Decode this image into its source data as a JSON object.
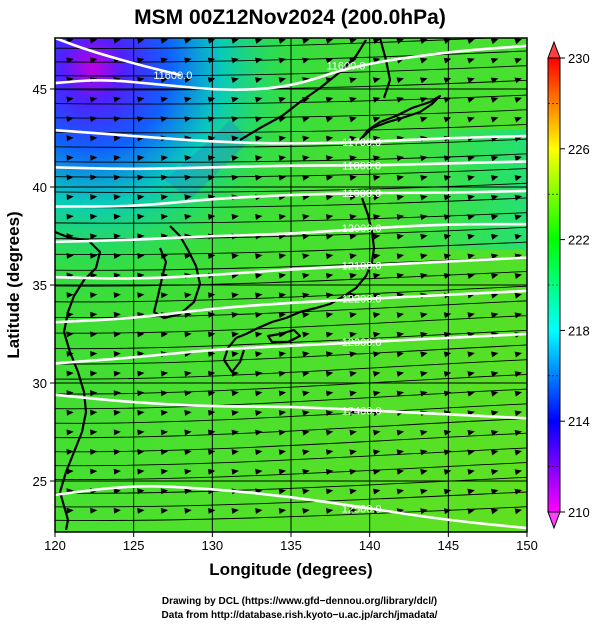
{
  "chart_data": {
    "type": "heatmap",
    "title": "MSM 00Z12Nov2024 (200.0hPa)",
    "xlabel": "Longitude (degrees)",
    "ylabel": "Latitude  (degrees)",
    "xlim": [
      120,
      150
    ],
    "ylim": [
      22.4,
      47.6
    ],
    "x_ticks": [
      "120",
      "125",
      "130",
      "135",
      "140",
      "145",
      "150"
    ],
    "x_tick_values": [
      120,
      125,
      130,
      135,
      140,
      145,
      150
    ],
    "y_ticks": [
      "25",
      "30",
      "35",
      "40",
      "45"
    ],
    "y_tick_values": [
      25,
      30,
      35,
      40,
      45
    ],
    "grid": true,
    "colorbar": {
      "min": 210,
      "max": 230,
      "tick_labels": [
        "230",
        "226",
        "222",
        "218",
        "214",
        "210"
      ],
      "tick_values": [
        230,
        226,
        222,
        218,
        214,
        210
      ],
      "colors": [
        "#ff00ff",
        "#8000ff",
        "#0000ff",
        "#0080ff",
        "#00ffff",
        "#00ff80",
        "#00ff00",
        "#80ff00",
        "#ffff00",
        "#ff8000",
        "#ff0000"
      ]
    },
    "contours": [
      {
        "label": "11600.0",
        "points": [
          [
            120,
            45.3
          ],
          [
            123,
            45.5
          ],
          [
            127,
            45.2
          ],
          [
            131,
            44.9
          ],
          [
            135,
            45.1
          ],
          [
            139,
            46.2
          ],
          [
            145,
            46.9
          ],
          [
            150,
            47.2
          ]
        ]
      },
      {
        "label": "11600.0",
        "points": [
          [
            120,
            47.6
          ],
          [
            122,
            47.0
          ],
          [
            125,
            46.3
          ],
          [
            128,
            45.7
          ]
        ]
      },
      {
        "label": "11700.0",
        "points": [
          [
            120,
            42.9
          ],
          [
            125,
            42.6
          ],
          [
            130,
            42.3
          ],
          [
            135,
            42.2
          ],
          [
            140,
            42.3
          ],
          [
            145,
            42.5
          ],
          [
            150,
            42.6
          ]
        ]
      },
      {
        "label": "11800.0",
        "points": [
          [
            120,
            41.0
          ],
          [
            125,
            40.9
          ],
          [
            130,
            41.0
          ],
          [
            135,
            41.1
          ],
          [
            140,
            41.1
          ],
          [
            145,
            41.2
          ],
          [
            150,
            41.3
          ]
        ]
      },
      {
        "label": "11900.0",
        "points": [
          [
            120,
            39.0
          ],
          [
            125,
            39.0
          ],
          [
            130,
            39.4
          ],
          [
            135,
            39.6
          ],
          [
            140,
            39.7
          ],
          [
            145,
            39.7
          ],
          [
            150,
            39.8
          ]
        ]
      },
      {
        "label": "12000.0",
        "points": [
          [
            120,
            37.2
          ],
          [
            125,
            37.3
          ],
          [
            130,
            37.5
          ],
          [
            135,
            37.6
          ],
          [
            140,
            37.9
          ],
          [
            145,
            38.1
          ],
          [
            150,
            38.1
          ]
        ]
      },
      {
        "label": "12100.0",
        "points": [
          [
            120,
            35.4
          ],
          [
            125,
            35.3
          ],
          [
            130,
            35.5
          ],
          [
            135,
            35.8
          ],
          [
            140,
            36.0
          ],
          [
            145,
            36.2
          ],
          [
            150,
            36.4
          ]
        ]
      },
      {
        "label": "12200.0",
        "points": [
          [
            120,
            33.1
          ],
          [
            125,
            33.3
          ],
          [
            130,
            33.8
          ],
          [
            135,
            34.1
          ],
          [
            140,
            34.3
          ],
          [
            145,
            34.5
          ],
          [
            150,
            34.7
          ]
        ]
      },
      {
        "label": "12300.0",
        "points": [
          [
            120,
            31.0
          ],
          [
            125,
            31.3
          ],
          [
            130,
            31.7
          ],
          [
            135,
            31.9
          ],
          [
            140,
            32.1
          ],
          [
            145,
            32.3
          ],
          [
            150,
            32.5
          ]
        ]
      },
      {
        "label": "12400.0",
        "points": [
          [
            120,
            29.4
          ],
          [
            125,
            29.0
          ],
          [
            130,
            28.8
          ],
          [
            135,
            28.8
          ],
          [
            140,
            28.6
          ],
          [
            145,
            28.4
          ],
          [
            150,
            28.2
          ]
        ]
      },
      {
        "label": "12500.0",
        "points": [
          [
            120,
            24.3
          ],
          [
            125,
            24.8
          ],
          [
            130,
            24.6
          ],
          [
            135,
            24.2
          ],
          [
            140,
            23.6
          ],
          [
            145,
            23.0
          ],
          [
            150,
            22.6
          ]
        ]
      }
    ]
  },
  "footer": {
    "line1": "Drawing by DCL (https://www.gfd−dennou.org/library/dcl/)",
    "line2": "Data from http://database.rish.kyoto−u.ac.jp/arch/jmadata/"
  }
}
